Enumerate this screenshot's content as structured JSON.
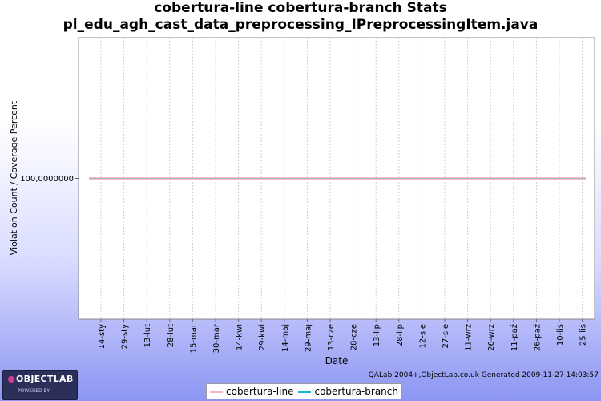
{
  "chart_data": {
    "type": "line",
    "title_lines": [
      "cobertura-line cobertura-branch  Stats",
      "pl_edu_agh_cast_data_preprocessing_IPreprocessingItem.java"
    ],
    "xlabel": "Date",
    "ylabel": "Violation Count / Coverage Percent",
    "x_tick_labels": [
      "14-sty",
      "29-sty",
      "13-lut",
      "28-lut",
      "15-mar",
      "30-mar",
      "14-kwi",
      "29-kwi",
      "14-maj",
      "29-maj",
      "13-cze",
      "28-cze",
      "13-lip",
      "28-lip",
      "12-sie",
      "27-sie",
      "11-wrz",
      "26-wrz",
      "11-paź",
      "26-paź",
      "10-lis",
      "25-lis"
    ],
    "y_tick_labels": [
      "100,0000000"
    ],
    "y_ticks": [
      100
    ],
    "ylim": [
      0,
      200
    ],
    "x_range": [
      0,
      22.6
    ],
    "series": [
      {
        "name": "cobertura-line",
        "color": "#f4b6c2",
        "x": [
          0,
          22.6
        ],
        "y": [
          100,
          100
        ]
      },
      {
        "name": "cobertura-branch",
        "color": "#1fb3c4",
        "x": [
          0,
          22.6
        ],
        "y": [
          100,
          100
        ]
      }
    ],
    "grid": "vertical dashed",
    "legend_position": "bottom"
  },
  "footer": {
    "note": "QALab 2004+,ObjectLab.co.uk Generated 2009-11-27 14:03:57"
  },
  "logo": {
    "text": "OBJECTLAB",
    "subtext": "POWERED BY"
  }
}
